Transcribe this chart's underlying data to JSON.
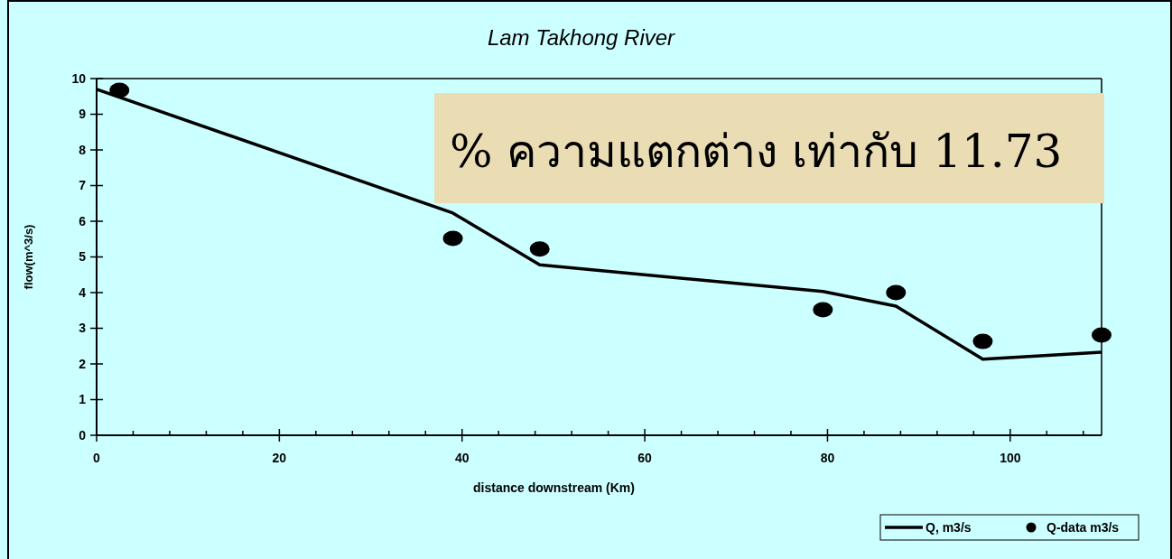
{
  "chart_data": {
    "type": "line",
    "title": "Lam Takhong River",
    "xlabel": "distance downstream (Km)",
    "ylabel": "flow(m^3/s)",
    "annotations": [
      "% ความแตกต่าง เท่ากับ 11.73"
    ],
    "xlim": [
      0,
      110
    ],
    "xticks": [
      0,
      {
        "value": 4,
        "label": null
      },
      {
        "value": 8,
        "label": null
      },
      {
        "value": 12,
        "label": null
      },
      {
        "value": 16,
        "label": null
      },
      20,
      {
        "value": 24,
        "label": null
      },
      {
        "value": 28,
        "label": null
      },
      {
        "value": 32,
        "label": null
      },
      {
        "value": 36,
        "label": null
      },
      40,
      {
        "value": 44,
        "label": null
      },
      {
        "value": 48,
        "label": null
      },
      {
        "value": 52,
        "label": null
      },
      {
        "value": 56,
        "label": null
      },
      60,
      {
        "value": 64,
        "label": null
      },
      {
        "value": 68,
        "label": null
      },
      {
        "value": 72,
        "label": null
      },
      {
        "value": 76,
        "label": null
      },
      80,
      {
        "value": 84,
        "label": null
      },
      {
        "value": 88,
        "label": null
      },
      {
        "value": 92,
        "label": null
      },
      {
        "value": 96,
        "label": null
      },
      100,
      {
        "value": 104,
        "label": null
      },
      {
        "value": 108,
        "label": null
      }
    ],
    "ylim": [
      0,
      10
    ],
    "yticks": [
      0,
      1,
      2,
      3,
      4,
      5,
      6,
      7,
      8,
      9,
      10
    ],
    "grid": false,
    "legend": "bottom right",
    "series": [
      {
        "name": "Q, m3/s",
        "color": "#000000",
        "marker": "none",
        "line_style": "solid",
        "x": [
          0,
          39,
          48.5,
          79.5,
          87.5,
          97,
          110
        ],
        "values": [
          9.7,
          6.23,
          4.78,
          4.03,
          3.62,
          2.13,
          2.33
        ]
      },
      {
        "name": "Q-data m3/s",
        "type": "scatter",
        "color": "#000000",
        "marker": "circle",
        "x": [
          2.5,
          39,
          48.5,
          79.5,
          87.5,
          97,
          110
        ],
        "values": [
          9.67,
          5.52,
          5.22,
          3.52,
          4.0,
          2.63,
          2.81
        ]
      }
    ]
  }
}
